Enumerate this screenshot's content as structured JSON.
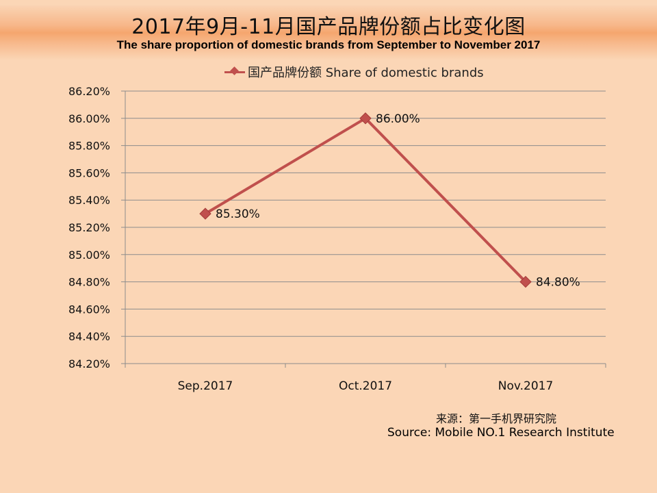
{
  "header": {
    "title_cn": "2017年9月-11月国产品牌份额占比变化图",
    "title_en": "The share proportion of domestic brands from September to November 2017"
  },
  "legend": {
    "label": "国产品牌份额 Share of domestic brands"
  },
  "source": {
    "cn": "来源：第一手机界研究院",
    "en": "Source: Mobile NO.1 Research Institute"
  },
  "chart_data": {
    "type": "line",
    "title": "2017年9月-11月国产品牌份额占比变化图",
    "subtitle": "The share proportion of domestic brands from September to November 2017",
    "categories": [
      "Sep.2017",
      "Oct.2017",
      "Nov.2017"
    ],
    "series": [
      {
        "name": "国产品牌份额 Share of domestic brands",
        "values": [
          85.3,
          86.0,
          84.8
        ],
        "data_labels": [
          "85.30%",
          "86.00%",
          "84.80%"
        ],
        "color": "#C0504D",
        "marker": "diamond"
      }
    ],
    "ylim": [
      84.2,
      86.2
    ],
    "ytick_step": 0.2,
    "ytick_labels": [
      "84.20%",
      "84.40%",
      "84.60%",
      "84.80%",
      "85.00%",
      "85.20%",
      "85.40%",
      "85.60%",
      "85.80%",
      "86.00%",
      "86.20%"
    ],
    "xlabel": "",
    "ylabel": "",
    "grid": true,
    "legend_position": "top"
  }
}
